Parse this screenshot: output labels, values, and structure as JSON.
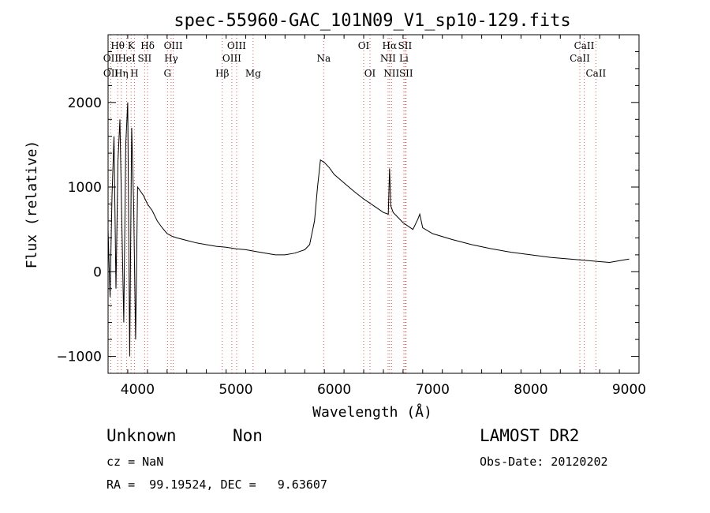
{
  "chart_data": {
    "type": "line",
    "title": "spec-55960-GAC_101N09_V1_sp10-129.fits",
    "xlabel": "Wavelength (Å)",
    "ylabel": "Flux (relative)",
    "xlim": [
      3700,
      9100
    ],
    "ylim": [
      -1200,
      2800
    ],
    "xticks": [
      4000,
      5000,
      6000,
      7000,
      8000,
      9000
    ],
    "yticks": [
      -1000,
      0,
      1000,
      2000
    ],
    "grid": false,
    "series": [
      {
        "x": [
          3700,
          3720,
          3740,
          3760,
          3780,
          3800,
          3820,
          3840,
          3860,
          3880,
          3900,
          3920,
          3940,
          3960,
          3980,
          4000,
          4030,
          4060,
          4100,
          4150,
          4200,
          4250,
          4300,
          4350,
          4400,
          4500,
          4600,
          4700,
          4800,
          4900,
          5000,
          5100,
          5200,
          5300,
          5400,
          5500,
          5600,
          5700,
          5750,
          5800,
          5830,
          5860,
          5900,
          5950,
          6000,
          6100,
          6200,
          6300,
          6400,
          6500,
          6550,
          6563,
          6575,
          6600,
          6700,
          6800,
          6850,
          6870,
          6900,
          7000,
          7200,
          7400,
          7600,
          7800,
          8000,
          8200,
          8400,
          8600,
          8800,
          8950,
          9000
        ],
        "y": [
          500,
          -300,
          900,
          1600,
          -200,
          1300,
          1800,
          600,
          -600,
          1500,
          2000,
          -1000,
          1700,
          800,
          -800,
          1000,
          950,
          900,
          800,
          720,
          600,
          520,
          450,
          420,
          400,
          370,
          340,
          320,
          300,
          290,
          270,
          260,
          240,
          220,
          200,
          200,
          220,
          260,
          320,
          600,
          1000,
          1320,
          1290,
          1230,
          1150,
          1050,
          950,
          860,
          780,
          700,
          680,
          1220,
          780,
          700,
          580,
          500,
          620,
          680,
          520,
          450,
          380,
          320,
          270,
          230,
          200,
          170,
          150,
          130,
          110,
          140,
          150
        ]
      }
    ],
    "line_labels": [
      {
        "label": "Hθ",
        "wave": 3798,
        "row": 0
      },
      {
        "label": "K",
        "wave": 3934,
        "row": 0
      },
      {
        "label": "Hδ",
        "wave": 4102,
        "row": 0
      },
      {
        "label": "OIII",
        "wave": 4363,
        "row": 0
      },
      {
        "label": "OIII",
        "wave": 5007,
        "row": 0
      },
      {
        "label": "OI",
        "wave": 6300,
        "row": 0
      },
      {
        "label": "Hα",
        "wave": 6563,
        "row": 0
      },
      {
        "label": "SII",
        "wave": 6720,
        "row": 0
      },
      {
        "label": "CaII",
        "wave": 8542,
        "row": 0
      },
      {
        "label": "OII",
        "wave": 3727,
        "row": 1
      },
      {
        "label": "HeI",
        "wave": 3889,
        "row": 1
      },
      {
        "label": "SII",
        "wave": 4072,
        "row": 1
      },
      {
        "label": "Hγ",
        "wave": 4341,
        "row": 1
      },
      {
        "label": "OIII",
        "wave": 4959,
        "row": 1
      },
      {
        "label": "Na",
        "wave": 5893,
        "row": 1
      },
      {
        "label": "NII",
        "wave": 6548,
        "row": 1
      },
      {
        "label": "Li",
        "wave": 6708,
        "row": 1
      },
      {
        "label": "CaII",
        "wave": 8498,
        "row": 1
      },
      {
        "label": "OII",
        "wave": 3729,
        "row": 2
      },
      {
        "label": "Hη",
        "wave": 3835,
        "row": 2
      },
      {
        "label": "H",
        "wave": 3968,
        "row": 2
      },
      {
        "label": "G",
        "wave": 4304,
        "row": 2
      },
      {
        "label": "Hβ",
        "wave": 4861,
        "row": 2
      },
      {
        "label": "Mg",
        "wave": 5175,
        "row": 2
      },
      {
        "label": "OI",
        "wave": 6364,
        "row": 2
      },
      {
        "label": "NII",
        "wave": 6583,
        "row": 2
      },
      {
        "label": "SII",
        "wave": 6731,
        "row": 2
      },
      {
        "label": "CaII",
        "wave": 8662,
        "row": 2
      }
    ],
    "line_marks": [
      3727,
      3798,
      3835,
      3889,
      3934,
      3968,
      4072,
      4102,
      4304,
      4341,
      4363,
      4861,
      4959,
      5007,
      5175,
      5893,
      6300,
      6364,
      6548,
      6563,
      6583,
      6708,
      6720,
      6731,
      8498,
      8542,
      8662
    ]
  },
  "info": {
    "class": "Unknown",
    "subclass": "Non",
    "survey": "LAMOST DR2",
    "cz": "cz = NaN",
    "obs_date": "Obs-Date: 20120202",
    "coords": "RA =  99.19524, DEC =   9.63607"
  }
}
